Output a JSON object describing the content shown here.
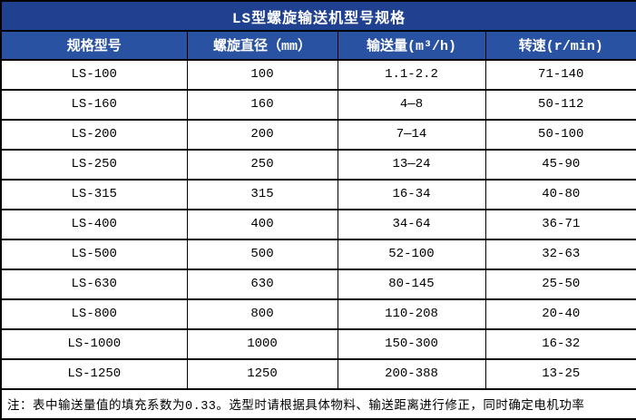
{
  "table": {
    "title": "LS型螺旋输送机型号规格",
    "columns": [
      "规格型号",
      "螺旋直径（mm）",
      "输送量(m³/h)",
      "转速(r/min)"
    ],
    "rows": [
      [
        "LS-100",
        "100",
        "1.1-2.2",
        "71-140"
      ],
      [
        "LS-160",
        "160",
        "4—8",
        "50-112"
      ],
      [
        "LS-200",
        "200",
        "7—14",
        "50-100"
      ],
      [
        "LS-250",
        "250",
        "13—24",
        "45-90"
      ],
      [
        "LS-315",
        "315",
        "16-34",
        "40-80"
      ],
      [
        "LS-400",
        "400",
        "34-64",
        "36-71"
      ],
      [
        "LS-500",
        "500",
        "52-100",
        "32-63"
      ],
      [
        "LS-630",
        "630",
        "80-145",
        "25-50"
      ],
      [
        "LS-800",
        "800",
        "110-208",
        "20-40"
      ],
      [
        "LS-1000",
        "1000",
        "150-300",
        "16-32"
      ],
      [
        "LS-1250",
        "1250",
        "200-388",
        "13-25"
      ]
    ],
    "note": "注：表中输送量值的填充系数为0.33。选型时请根据具体物料、输送距离进行修正，同时确定电机功率",
    "colors": {
      "title_bg": "#1f4190",
      "header_bg": "#2a52a2",
      "header_text": "#ffffff",
      "border": "#000000",
      "row_bg": "#ffffff",
      "body_text": "#000000"
    }
  }
}
